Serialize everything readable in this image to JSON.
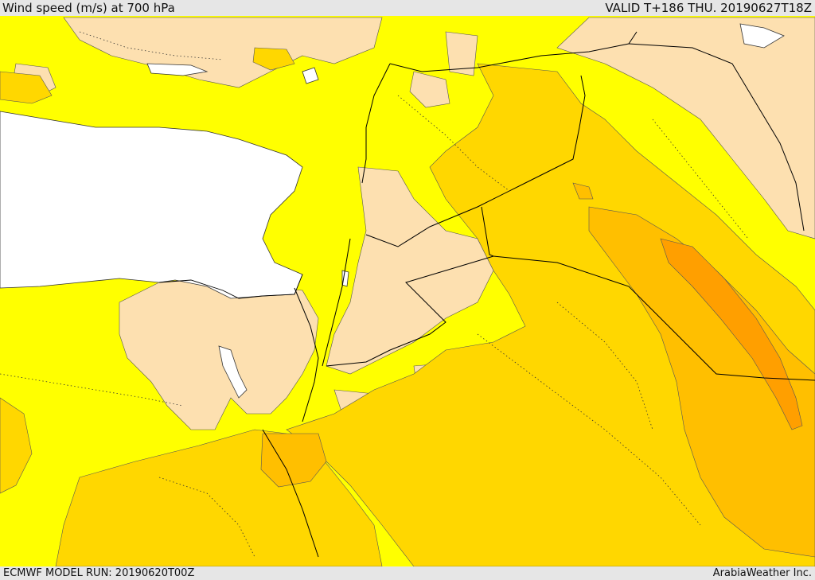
{
  "header": {
    "title": "Wind speed (m/s) at 700 hPa",
    "valid": "VALID T+186 THU. 20190627T18Z"
  },
  "footer": {
    "model_run": "ECMWF MODEL RUN: 20190620T00Z",
    "credit": "ArabiaWeather Inc."
  },
  "colors": {
    "background": "#e6e6e6",
    "yellow": "#ffff00",
    "wheat": "#fde0b0",
    "gold": "#ffd700",
    "amber": "#ffbf00",
    "orange": "#ff9f00",
    "water": "#ffffff"
  }
}
